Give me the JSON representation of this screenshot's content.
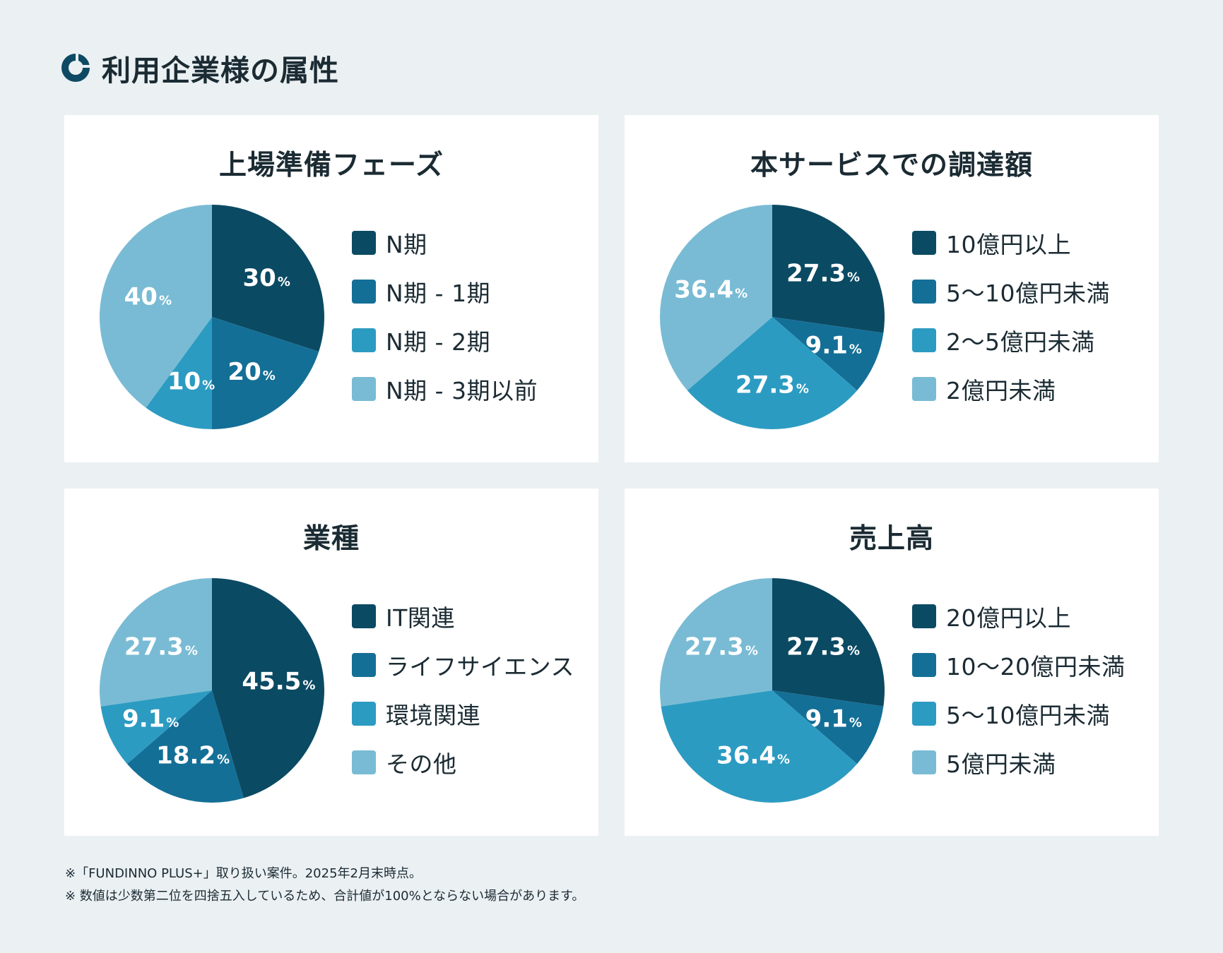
{
  "header": {
    "title": "利用企業様の属性",
    "logo_icon": "ring-logo-icon",
    "accent_color": "#0e4a63"
  },
  "colors": [
    "#0b4a63",
    "#146f96",
    "#2c9bc2",
    "#79bbd4"
  ],
  "chart_data": [
    {
      "type": "pie",
      "title": "上場準備フェーズ",
      "categories": [
        "N期",
        "N期 - 1期",
        "N期 - 2期",
        "N期 - 3期以前"
      ],
      "values": [
        30,
        20,
        10,
        40
      ],
      "labels": [
        "30",
        "20",
        "10",
        "40"
      ],
      "unit": "%",
      "legend_position": "right"
    },
    {
      "type": "pie",
      "title": "本サービスでの調達額",
      "categories": [
        "10億円以上",
        "5～10億円未満",
        "2～5億円未満",
        "2億円未満"
      ],
      "values": [
        27.3,
        9.1,
        27.3,
        36.4
      ],
      "labels": [
        "27.3",
        "9.1",
        "27.3",
        "36.4"
      ],
      "unit": "%",
      "legend_position": "right"
    },
    {
      "type": "pie",
      "title": "業種",
      "categories": [
        "IT関連",
        "ライフサイエンス",
        "環境関連",
        "その他"
      ],
      "values": [
        45.5,
        18.2,
        9.1,
        27.3
      ],
      "labels": [
        "45.5",
        "18.2",
        "9.1",
        "27.3"
      ],
      "unit": "%",
      "legend_position": "right"
    },
    {
      "type": "pie",
      "title": "売上高",
      "categories": [
        "20億円以上",
        "10～20億円未満",
        "5～10億円未満",
        "5億円未満"
      ],
      "values": [
        27.3,
        9.1,
        36.4,
        27.3
      ],
      "labels": [
        "27.3",
        "9.1",
        "36.4",
        "27.3"
      ],
      "unit": "%",
      "legend_position": "right"
    }
  ],
  "footnotes": [
    "※「FUNDINNO PLUS+」取り扱い案件。2025年2月末時点。",
    "※ 数値は少数第二位を四捨五入しているため、合計値が100%とならない場合があります。"
  ]
}
